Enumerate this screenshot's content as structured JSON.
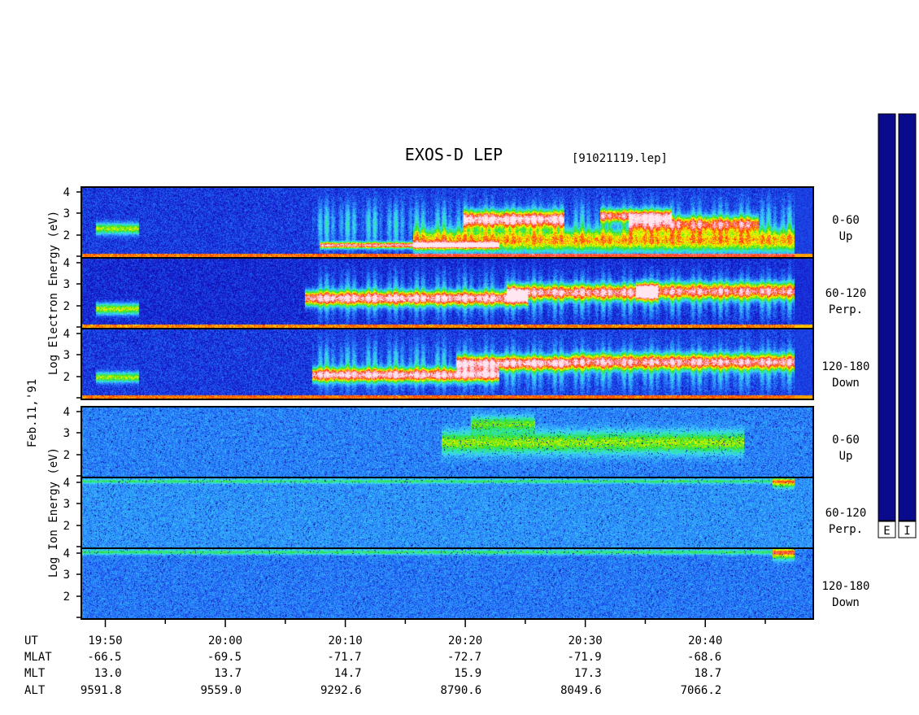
{
  "chart_data": {
    "type": "heatmap",
    "title": "EXOS-D LEP",
    "file_label": "[91021119.lep]",
    "date_label": "Feb.11,'91",
    "time_axis": {
      "range": [
        "19:48",
        "20:49"
      ]
    },
    "groups": [
      {
        "name": "electron",
        "ylabel": [
          "Log",
          "Electron",
          "Energy",
          "(eV)"
        ]
      },
      {
        "name": "ion",
        "ylabel": [
          "Log",
          "Ion",
          "Energy",
          "(eV)"
        ]
      }
    ],
    "panels": [
      {
        "group": "electron",
        "angle": "0-60",
        "direction": "Up",
        "ylim": [
          1,
          4
        ],
        "yticks": [
          "2",
          "3",
          "4"
        ]
      },
      {
        "group": "electron",
        "angle": "60-120",
        "direction": "Perp.",
        "ylim": [
          1,
          4
        ],
        "yticks": [
          "2",
          "3",
          "4"
        ]
      },
      {
        "group": "electron",
        "angle": "120-180",
        "direction": "Down",
        "ylim": [
          1,
          4
        ],
        "yticks": [
          "2",
          "3",
          "4"
        ]
      },
      {
        "group": "ion",
        "angle": "0-60",
        "direction": "Up",
        "ylim": [
          1,
          4
        ],
        "yticks": [
          "2",
          "3",
          "4"
        ]
      },
      {
        "group": "ion",
        "angle": "60-120",
        "direction": "Perp.",
        "ylim": [
          1,
          4
        ],
        "yticks": [
          "2",
          "3",
          "4"
        ]
      },
      {
        "group": "ion",
        "angle": "120-180",
        "direction": "Down",
        "ylim": [
          1,
          4
        ],
        "yticks": [
          "2",
          "3",
          "4"
        ]
      }
    ],
    "orbit_table": {
      "row_labels": [
        "UT",
        "MLAT",
        "MLT",
        "ALT"
      ],
      "columns": [
        {
          "UT": "19:50",
          "MLAT": "-66.5",
          "MLT": "13.0",
          "ALT": "9591.8"
        },
        {
          "UT": "20:00",
          "MLAT": "-69.5",
          "MLT": "13.7",
          "ALT": "9559.0"
        },
        {
          "UT": "20:10",
          "MLAT": "-71.7",
          "MLT": "14.7",
          "ALT": "9292.6"
        },
        {
          "UT": "20:20",
          "MLAT": "-72.7",
          "MLT": "15.9",
          "ALT": "8790.6"
        },
        {
          "UT": "20:30",
          "MLAT": "-71.9",
          "MLT": "17.3",
          "ALT": "8049.6"
        },
        {
          "UT": "20:40",
          "MLAT": "-68.6",
          "MLT": "18.7",
          "ALT": "7066.2"
        }
      ]
    },
    "colorbars": [
      {
        "label": "E",
        "range": "low (white) to high (dark blue)"
      },
      {
        "label": "I",
        "range": "low (white) to high (dark blue)"
      }
    ],
    "colorscale": [
      "#0a0a8c",
      "#1414c8",
      "#1e5af0",
      "#32a0ff",
      "#3cdcf0",
      "#32e6a0",
      "#28dc28",
      "#b4f000",
      "#ffff00",
      "#ff9600",
      "#ff2800",
      "#ff6e78",
      "#ffb4c8",
      "#ffe6f0"
    ],
    "features": {
      "electron_up": {
        "base": 0.06,
        "bands": [
          {
            "t": [
              19.82,
              19.88
            ],
            "e": 2.25,
            "w": 0.22,
            "a": 0.45
          },
          {
            "t": [
              20.13,
              20.38
            ],
            "e": 1.55,
            "w": 0.12,
            "a": 0.85
          },
          {
            "t": [
              20.26,
              20.8
            ],
            "e": 1.75,
            "w": 0.45,
            "a": 0.55
          },
          {
            "t": [
              20.33,
              20.47
            ],
            "e": 2.65,
            "w": 0.32,
            "a": 0.9
          },
          {
            "t": [
              20.52,
              20.62
            ],
            "e": 2.8,
            "w": 0.25,
            "a": 0.75
          },
          {
            "t": [
              20.56,
              20.74
            ],
            "e": 2.45,
            "w": 0.3,
            "a": 0.65
          }
        ]
      },
      "electron_perp": {
        "base": 0.04,
        "bands": [
          {
            "t": [
              19.82,
              19.88
            ],
            "e": 1.85,
            "w": 0.22,
            "a": 0.5
          },
          {
            "t": [
              20.11,
              20.42
            ],
            "e": 2.3,
            "w": 0.28,
            "a": 0.88
          },
          {
            "t": [
              20.39,
              20.6
            ],
            "e": 2.55,
            "w": 0.3,
            "a": 0.82
          },
          {
            "t": [
              20.57,
              20.8
            ],
            "e": 2.6,
            "w": 0.32,
            "a": 0.78
          }
        ]
      },
      "electron_down": {
        "base": 0.06,
        "bands": [
          {
            "t": [
              19.82,
              19.88
            ],
            "e": 1.95,
            "w": 0.2,
            "a": 0.45
          },
          {
            "t": [
              20.12,
              20.38
            ],
            "e": 2.05,
            "w": 0.26,
            "a": 0.88
          },
          {
            "t": [
              20.32,
              20.48
            ],
            "e": 2.55,
            "w": 0.28,
            "a": 0.88
          },
          {
            "t": [
              20.48,
              20.8
            ],
            "e": 2.6,
            "w": 0.3,
            "a": 0.8
          }
        ]
      },
      "ion_up": {
        "base": 0.14,
        "bands": [
          {
            "t": [
              20.3,
              20.72
            ],
            "e": 2.5,
            "w": 0.45,
            "a": 0.35
          },
          {
            "t": [
              20.34,
              20.43
            ],
            "e": 3.3,
            "w": 0.3,
            "a": 0.3
          }
        ]
      },
      "ion_perp": {
        "base": 0.16,
        "bands": [
          {
            "t": [
              19.8,
              20.79
            ],
            "e": 3.85,
            "w": 0.08,
            "a": 0.22
          },
          {
            "t": [
              20.76,
              20.79
            ],
            "e": 3.8,
            "w": 0.2,
            "a": 0.4
          }
        ]
      },
      "ion_down": {
        "base": 0.13,
        "bands": [
          {
            "t": [
              19.8,
              20.79
            ],
            "e": 3.85,
            "w": 0.1,
            "a": 0.25
          },
          {
            "t": [
              20.76,
              20.79
            ],
            "e": 3.8,
            "w": 0.25,
            "a": 0.45
          }
        ]
      }
    }
  }
}
